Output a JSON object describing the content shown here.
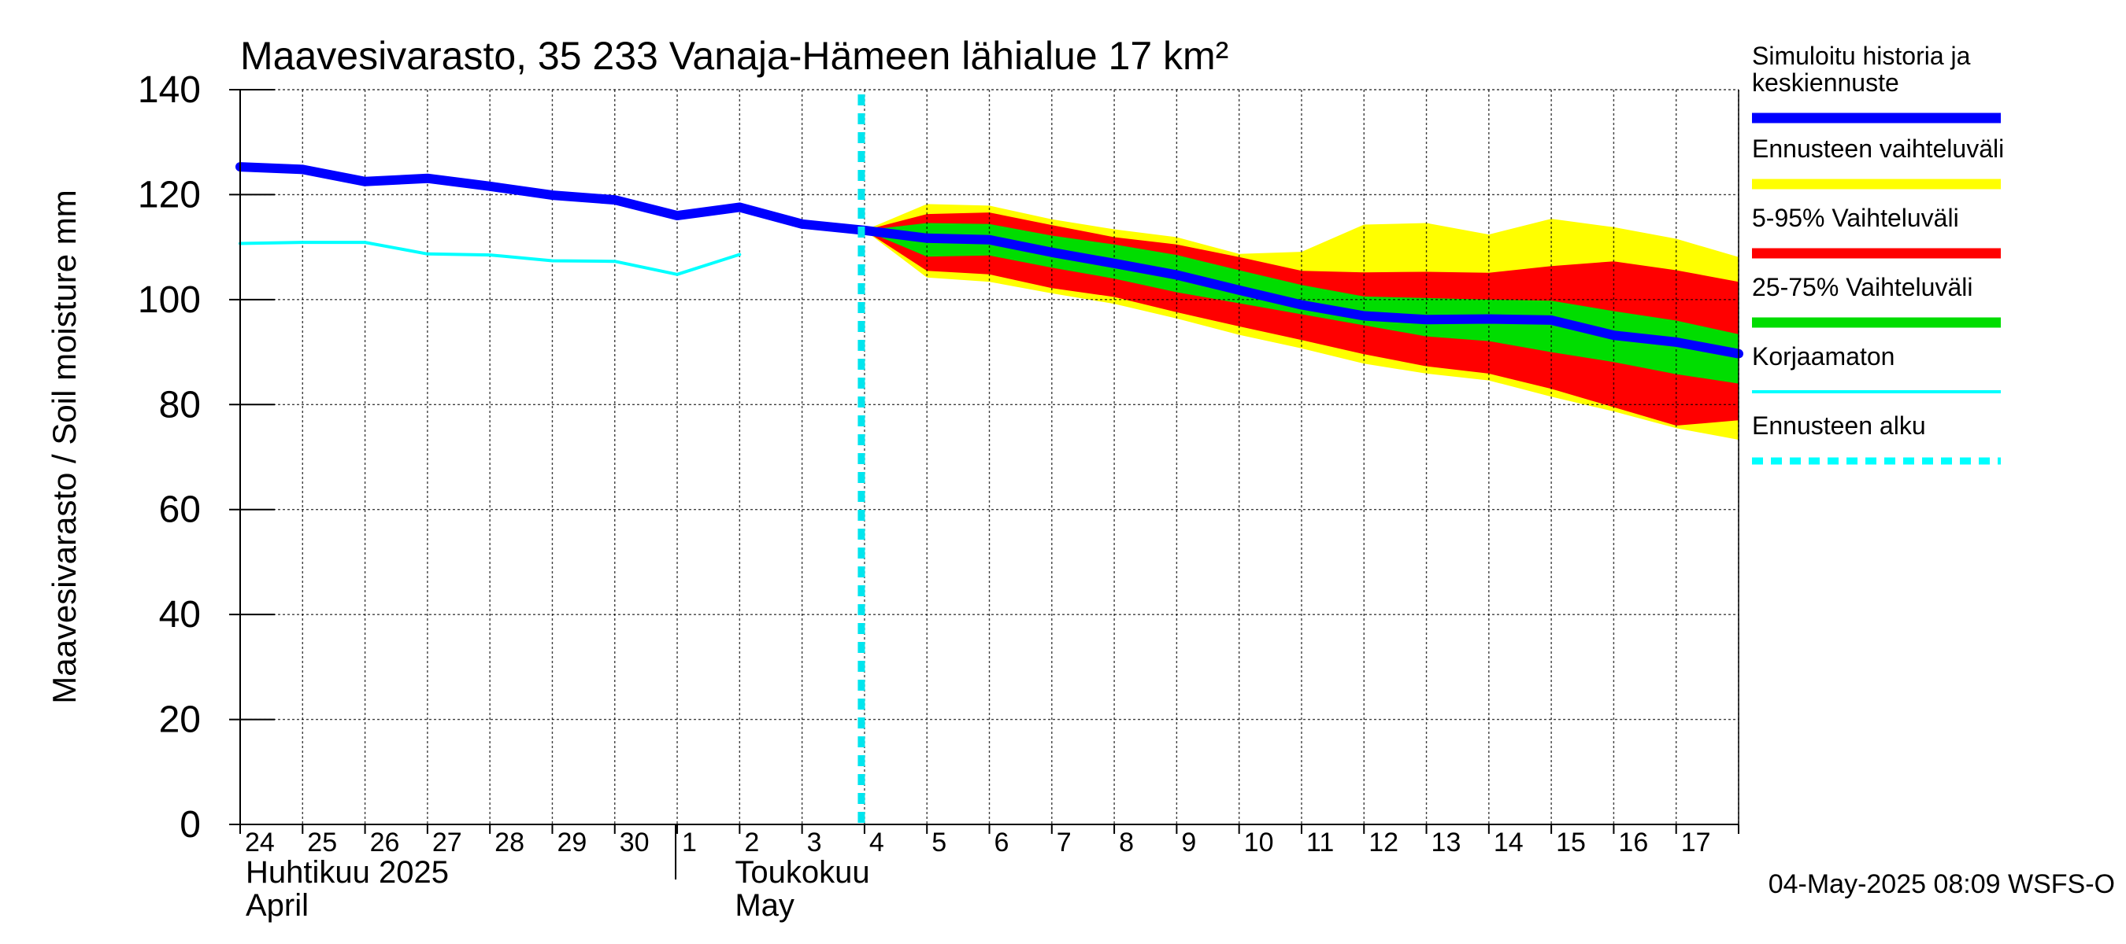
{
  "chart_data": {
    "type": "area",
    "title": "Maavesivarasto, 35 233 Vanaja-Hämeen lähialue 17 km²",
    "ylabel": "Maavesivarasto / Soil moisture   mm",
    "ylim": [
      0,
      140
    ],
    "yticks": [
      0,
      20,
      40,
      60,
      80,
      100,
      120,
      140
    ],
    "xlim": [
      "2025-04-24",
      "2025-05-18"
    ],
    "xtick_labels": [
      "24",
      "25",
      "26",
      "27",
      "28",
      "29",
      "30",
      "1",
      "2",
      "3",
      "4",
      "5",
      "6",
      "7",
      "8",
      "9",
      "10",
      "11",
      "12",
      "13",
      "14",
      "15",
      "16",
      "17"
    ],
    "month_labels": {
      "april_fi": "Huhtikuu  2025",
      "april_en": "April",
      "may_fi": "Toukokuu",
      "may_en": "May"
    },
    "grid": true,
    "legend_position": "right",
    "forecast_start": "2025-05-04",
    "x": [
      "2025-04-24",
      "2025-04-25",
      "2025-04-26",
      "2025-04-27",
      "2025-04-28",
      "2025-04-29",
      "2025-04-30",
      "2025-05-01",
      "2025-05-02",
      "2025-05-03",
      "2025-05-04",
      "2025-05-05",
      "2025-05-06",
      "2025-05-07",
      "2025-05-08",
      "2025-05-09",
      "2025-05-10",
      "2025-05-11",
      "2025-05-12",
      "2025-05-13",
      "2025-05-14",
      "2025-05-15",
      "2025-05-16",
      "2025-05-17",
      "2025-05-18"
    ],
    "series": [
      {
        "name": "Simuloitu historia ja keskiennuste",
        "color": "#0000ff",
        "values": [
          125.3,
          124.8,
          122.5,
          123.1,
          121.6,
          119.9,
          119.0,
          116.0,
          117.6,
          114.4,
          113.2,
          111.7,
          111.4,
          109.0,
          106.9,
          104.7,
          101.8,
          99.0,
          96.9,
          96.2,
          96.3,
          96.1,
          93.2,
          91.9,
          89.7
        ]
      },
      {
        "name": "Korjaamaton",
        "color": "#00ffff",
        "values": [
          110.7,
          110.9,
          110.9,
          108.7,
          108.5,
          107.4,
          107.3,
          104.8,
          108.6,
          null,
          null,
          null,
          null,
          null,
          null,
          null,
          null,
          null,
          null,
          null,
          null,
          null,
          null,
          null,
          null
        ]
      }
    ],
    "bands": [
      {
        "name": "Ennusteen vaihteluväli",
        "color": "#ffff00",
        "x_start": "2025-05-04",
        "lower": [
          113.2,
          104.2,
          103.4,
          101.2,
          99.2,
          96.4,
          93.3,
          90.7,
          87.8,
          85.9,
          84.6,
          81.5,
          78.7,
          75.5,
          73.3
        ],
        "upper": [
          113.2,
          118.2,
          117.9,
          115.3,
          113.4,
          111.9,
          108.7,
          109.1,
          114.3,
          114.6,
          112.4,
          115.4,
          113.8,
          111.6,
          108.1
        ]
      },
      {
        "name": "5-95% Vaihteluväli",
        "color": "#ff0000",
        "x_start": "2025-05-04",
        "lower": [
          113.2,
          105.5,
          104.8,
          102.2,
          100.5,
          97.6,
          94.9,
          92.3,
          89.6,
          87.3,
          85.9,
          83.0,
          79.5,
          76.0,
          77.0
        ],
        "upper": [
          113.2,
          116.3,
          116.6,
          114.2,
          111.9,
          110.5,
          108.1,
          105.5,
          105.2,
          105.3,
          105.1,
          106.4,
          107.3,
          105.6,
          103.4
        ]
      },
      {
        "name": "25-75% Vaihteluväli",
        "color": "#00dd00",
        "x_start": "2025-05-04",
        "lower": [
          113.2,
          108.2,
          108.4,
          106.1,
          104.0,
          101.4,
          99.3,
          97.2,
          95.1,
          93.0,
          92.1,
          90.0,
          88.1,
          85.8,
          84.0
        ],
        "upper": [
          113.2,
          114.6,
          114.4,
          112.2,
          110.5,
          108.5,
          105.6,
          102.8,
          100.6,
          100.3,
          100.0,
          99.8,
          97.8,
          96.0,
          93.4
        ]
      }
    ],
    "legend": [
      {
        "label": "Simuloitu historia ja keskiennuste",
        "lines": [
          "Simuloitu historia ja",
          "keskiennuste"
        ],
        "color": "#0000ff",
        "style": "thick"
      },
      {
        "label": "Ennusteen vaihteluväli",
        "lines": [
          "Ennusteen vaihteluväli"
        ],
        "color": "#ffff00",
        "style": "thick"
      },
      {
        "label": "5-95% Vaihteluväli",
        "lines": [
          "5-95% Vaihteluväli"
        ],
        "color": "#ff0000",
        "style": "thick"
      },
      {
        "label": "25-75% Vaihteluväli",
        "lines": [
          "25-75% Vaihteluväli"
        ],
        "color": "#00dd00",
        "style": "thick"
      },
      {
        "label": "Korjaamaton",
        "lines": [
          "Korjaamaton"
        ],
        "color": "#00ffff",
        "style": "thin"
      },
      {
        "label": "Ennusteen alku",
        "lines": [
          "Ennusteen alku"
        ],
        "color": "#00ffff",
        "style": "dashed"
      }
    ],
    "timestamp": "04-May-2025 08:09 WSFS-O"
  }
}
